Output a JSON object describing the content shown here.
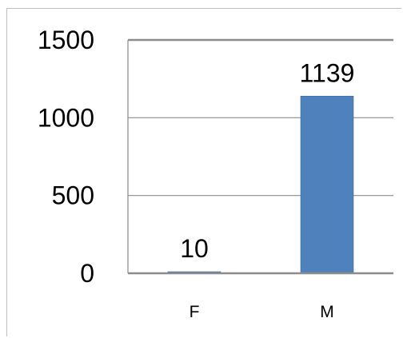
{
  "chart_data": {
    "type": "bar",
    "title": "",
    "xlabel": "",
    "ylabel": "",
    "categories": [
      "F",
      "M"
    ],
    "values": [
      10,
      1139
    ],
    "data_labels": [
      "10",
      "1139"
    ],
    "ylim": [
      0,
      1500
    ],
    "yticks": [
      0,
      500,
      1000,
      1500
    ],
    "ytick_labels": [
      "0",
      "500",
      "1000",
      "1500"
    ],
    "grid": true,
    "legend": "none",
    "colors": {
      "bar": "#4f81bd",
      "bar_edge": "#3a6aa3",
      "gridline": "#8c8c8c",
      "axis": "#8c8c8c",
      "frame": "#bfbfbf",
      "text": "#000000"
    }
  }
}
